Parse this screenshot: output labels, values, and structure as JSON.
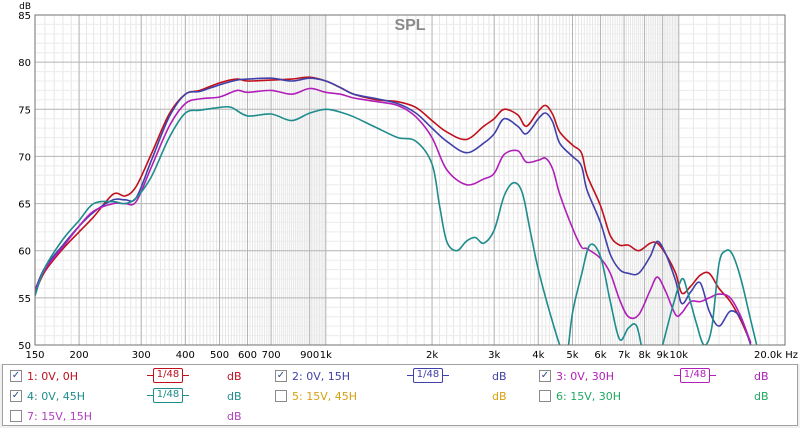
{
  "chart_data": {
    "type": "line",
    "title": "SPL",
    "ylabel": "dB",
    "xlabel": "Hz",
    "x_scale": "log",
    "xlim": [
      150,
      20000
    ],
    "ylim": [
      50,
      85
    ],
    "x_ticks": [
      {
        "value": 150,
        "label": "150"
      },
      {
        "value": 200,
        "label": "200"
      },
      {
        "value": 300,
        "label": "300"
      },
      {
        "value": 400,
        "label": "400"
      },
      {
        "value": 500,
        "label": "500"
      },
      {
        "value": 600,
        "label": "600"
      },
      {
        "value": 700,
        "label": "700"
      },
      {
        "value": 900,
        "label": "900"
      },
      {
        "value": 1000,
        "label": "1k"
      },
      {
        "value": 2000,
        "label": "2k"
      },
      {
        "value": 3000,
        "label": "3k"
      },
      {
        "value": 4000,
        "label": "4k"
      },
      {
        "value": 5000,
        "label": "5k"
      },
      {
        "value": 6000,
        "label": "6k"
      },
      {
        "value": 7000,
        "label": "7k"
      },
      {
        "value": 8000,
        "label": "8k"
      },
      {
        "value": 9000,
        "label": "9k"
      },
      {
        "value": 10000,
        "label": "10k"
      },
      {
        "value": 20000,
        "label": "20.0k Hz"
      }
    ],
    "y_ticks": [
      50,
      55,
      60,
      65,
      70,
      75,
      80,
      85
    ],
    "grid": true,
    "series": [
      {
        "name": "1: 0V, 0H",
        "color": "#c0101c",
        "points": [
          [
            150,
            55.5
          ],
          [
            160,
            57.8
          ],
          [
            180,
            60.2
          ],
          [
            200,
            62.0
          ],
          [
            220,
            63.6
          ],
          [
            250,
            66.0
          ],
          [
            270,
            65.8
          ],
          [
            290,
            66.8
          ],
          [
            320,
            70.2
          ],
          [
            360,
            74.5
          ],
          [
            400,
            76.6
          ],
          [
            440,
            77.0
          ],
          [
            500,
            77.8
          ],
          [
            560,
            78.2
          ],
          [
            600,
            78.0
          ],
          [
            700,
            78.1
          ],
          [
            800,
            78.2
          ],
          [
            900,
            78.4
          ],
          [
            1000,
            78.0
          ],
          [
            1100,
            77.3
          ],
          [
            1200,
            76.6
          ],
          [
            1400,
            76.0
          ],
          [
            1600,
            75.8
          ],
          [
            1800,
            75.2
          ],
          [
            2000,
            73.8
          ],
          [
            2200,
            72.6
          ],
          [
            2500,
            71.8
          ],
          [
            2800,
            73.2
          ],
          [
            3000,
            74.0
          ],
          [
            3200,
            75.0
          ],
          [
            3500,
            74.4
          ],
          [
            3700,
            73.2
          ],
          [
            4000,
            74.8
          ],
          [
            4200,
            75.4
          ],
          [
            4400,
            74.4
          ],
          [
            4600,
            72.6
          ],
          [
            5000,
            71.2
          ],
          [
            5300,
            70.4
          ],
          [
            5500,
            68.0
          ],
          [
            6000,
            64.8
          ],
          [
            6400,
            61.6
          ],
          [
            6800,
            60.6
          ],
          [
            7200,
            60.6
          ],
          [
            7700,
            60.0
          ],
          [
            8300,
            60.8
          ],
          [
            8700,
            60.8
          ],
          [
            9200,
            59.6
          ],
          [
            9800,
            57.6
          ],
          [
            10200,
            55.5
          ],
          [
            10800,
            56.2
          ],
          [
            11500,
            57.4
          ],
          [
            12200,
            57.6
          ],
          [
            13000,
            56.0
          ],
          [
            14000,
            54.6
          ],
          [
            15000,
            52.6
          ],
          [
            16000,
            50.2
          ]
        ]
      },
      {
        "name": "2: 0V, 15H",
        "color": "#4040a8",
        "points": [
          [
            150,
            55.8
          ],
          [
            160,
            58.2
          ],
          [
            180,
            60.6
          ],
          [
            200,
            62.6
          ],
          [
            220,
            64.1
          ],
          [
            250,
            65.4
          ],
          [
            270,
            65.4
          ],
          [
            290,
            65.6
          ],
          [
            320,
            69.5
          ],
          [
            360,
            74.2
          ],
          [
            400,
            76.6
          ],
          [
            440,
            76.9
          ],
          [
            500,
            77.6
          ],
          [
            560,
            78.1
          ],
          [
            600,
            78.2
          ],
          [
            700,
            78.3
          ],
          [
            800,
            78.0
          ],
          [
            900,
            78.3
          ],
          [
            1000,
            78.0
          ],
          [
            1100,
            77.3
          ],
          [
            1200,
            76.6
          ],
          [
            1400,
            76.1
          ],
          [
            1600,
            75.6
          ],
          [
            1800,
            74.6
          ],
          [
            2000,
            73.0
          ],
          [
            2200,
            71.6
          ],
          [
            2500,
            70.4
          ],
          [
            2800,
            71.4
          ],
          [
            3000,
            72.4
          ],
          [
            3200,
            74.0
          ],
          [
            3500,
            73.2
          ],
          [
            3700,
            72.4
          ],
          [
            4000,
            74.0
          ],
          [
            4200,
            74.6
          ],
          [
            4400,
            73.6
          ],
          [
            4600,
            71.4
          ],
          [
            5000,
            70.0
          ],
          [
            5300,
            69.0
          ],
          [
            5500,
            66.4
          ],
          [
            6000,
            63.0
          ],
          [
            6400,
            59.6
          ],
          [
            6800,
            58.0
          ],
          [
            7200,
            57.6
          ],
          [
            7700,
            57.6
          ],
          [
            8300,
            59.4
          ],
          [
            8700,
            61.0
          ],
          [
            9200,
            59.6
          ],
          [
            9800,
            56.8
          ],
          [
            10200,
            54.4
          ],
          [
            10800,
            55.6
          ],
          [
            11500,
            56.6
          ],
          [
            12200,
            53.6
          ],
          [
            13000,
            52.0
          ],
          [
            14000,
            53.6
          ],
          [
            15000,
            52.8
          ],
          [
            16000,
            50.0
          ]
        ]
      },
      {
        "name": "3: 0V, 30H",
        "color": "#b020b8",
        "points": [
          [
            150,
            55.6
          ],
          [
            160,
            58.0
          ],
          [
            180,
            60.4
          ],
          [
            200,
            62.6
          ],
          [
            220,
            64.2
          ],
          [
            250,
            65.0
          ],
          [
            270,
            65.0
          ],
          [
            290,
            65.2
          ],
          [
            320,
            68.8
          ],
          [
            360,
            73.2
          ],
          [
            400,
            75.6
          ],
          [
            440,
            76.1
          ],
          [
            500,
            76.3
          ],
          [
            560,
            77.0
          ],
          [
            600,
            76.8
          ],
          [
            700,
            77.0
          ],
          [
            800,
            76.6
          ],
          [
            900,
            77.2
          ],
          [
            1000,
            76.8
          ],
          [
            1100,
            76.6
          ],
          [
            1200,
            76.2
          ],
          [
            1400,
            75.8
          ],
          [
            1600,
            75.4
          ],
          [
            1800,
            74.2
          ],
          [
            2000,
            72.0
          ],
          [
            2200,
            68.6
          ],
          [
            2500,
            67.0
          ],
          [
            2800,
            67.6
          ],
          [
            3000,
            68.2
          ],
          [
            3200,
            70.2
          ],
          [
            3500,
            70.6
          ],
          [
            3700,
            69.4
          ],
          [
            4000,
            69.6
          ],
          [
            4200,
            69.8
          ],
          [
            4400,
            68.6
          ],
          [
            4600,
            66.0
          ],
          [
            5000,
            62.4
          ],
          [
            5300,
            60.4
          ],
          [
            5500,
            60.2
          ],
          [
            6000,
            59.2
          ],
          [
            6400,
            57.6
          ],
          [
            6800,
            54.8
          ],
          [
            7200,
            53.0
          ],
          [
            7700,
            53.2
          ],
          [
            8300,
            55.8
          ],
          [
            8700,
            57.2
          ],
          [
            9200,
            55.6
          ],
          [
            9800,
            53.2
          ],
          [
            10200,
            53.4
          ],
          [
            10800,
            54.6
          ],
          [
            11500,
            54.6
          ],
          [
            12200,
            55.0
          ],
          [
            13000,
            55.4
          ],
          [
            14000,
            55.0
          ],
          [
            15000,
            53.0
          ],
          [
            16000,
            50.2
          ]
        ]
      },
      {
        "name": "4: 0V, 45H",
        "color": "#1e8c8c",
        "points": [
          [
            150,
            55.2
          ],
          [
            160,
            58.2
          ],
          [
            180,
            61.2
          ],
          [
            200,
            63.2
          ],
          [
            220,
            65.0
          ],
          [
            250,
            65.2
          ],
          [
            270,
            65.0
          ],
          [
            290,
            65.6
          ],
          [
            320,
            67.8
          ],
          [
            360,
            72.0
          ],
          [
            400,
            74.6
          ],
          [
            440,
            74.9
          ],
          [
            500,
            75.2
          ],
          [
            540,
            75.2
          ],
          [
            600,
            74.3
          ],
          [
            700,
            74.5
          ],
          [
            800,
            73.8
          ],
          [
            900,
            74.6
          ],
          [
            1000,
            75.0
          ],
          [
            1100,
            74.7
          ],
          [
            1200,
            74.2
          ],
          [
            1400,
            73.0
          ],
          [
            1600,
            72.0
          ],
          [
            1800,
            71.6
          ],
          [
            2000,
            69.2
          ],
          [
            2100,
            64.8
          ],
          [
            2200,
            61.0
          ],
          [
            2350,
            60.0
          ],
          [
            2500,
            61.0
          ],
          [
            2650,
            61.4
          ],
          [
            2800,
            60.8
          ],
          [
            3000,
            62.2
          ],
          [
            3200,
            65.8
          ],
          [
            3400,
            67.2
          ],
          [
            3600,
            66.2
          ],
          [
            3800,
            62.0
          ],
          [
            4000,
            58.0
          ],
          [
            4300,
            53.6
          ],
          [
            4600,
            50.0
          ],
          [
            4800,
            48.5
          ],
          [
            5000,
            53.4
          ],
          [
            5300,
            57.4
          ],
          [
            5600,
            60.6
          ],
          [
            6000,
            59.4
          ],
          [
            6400,
            54.6
          ],
          [
            6800,
            50.6
          ],
          [
            7200,
            51.8
          ],
          [
            7600,
            52.0
          ],
          [
            8000,
            48.5
          ],
          [
            8500,
            47.0
          ],
          [
            9000,
            50.0
          ],
          [
            9600,
            54.0
          ],
          [
            10200,
            57.0
          ],
          [
            10600,
            55.6
          ],
          [
            11200,
            52.4
          ],
          [
            11800,
            50.0
          ],
          [
            12400,
            51.8
          ],
          [
            13000,
            58.6
          ],
          [
            13600,
            60.0
          ],
          [
            14200,
            59.6
          ],
          [
            15000,
            57.0
          ],
          [
            16000,
            52.6
          ],
          [
            17000,
            48.5
          ]
        ]
      }
    ],
    "legend": [
      {
        "label": "1: 0V, 0H",
        "checked": true,
        "smoothing": "1/48",
        "color": "#c0101c",
        "unit": "dB"
      },
      {
        "label": "2: 0V, 15H",
        "checked": true,
        "smoothing": "1/48",
        "color": "#4040a8",
        "unit": "dB"
      },
      {
        "label": "3: 0V, 30H",
        "checked": true,
        "smoothing": "1/48",
        "color": "#b020b8",
        "unit": "dB"
      },
      {
        "label": "4: 0V, 45H",
        "checked": true,
        "smoothing": "1/48",
        "color": "#1e8c8c",
        "unit": "dB"
      },
      {
        "label": "5: 15V, 45H",
        "checked": false,
        "smoothing": "",
        "color": "#d8a010",
        "unit": "dB"
      },
      {
        "label": "6: 15V, 30H",
        "checked": false,
        "smoothing": "",
        "color": "#20a860",
        "unit": "dB"
      },
      {
        "label": "7: 15V, 15H",
        "checked": false,
        "smoothing": "",
        "color": "#b040c0",
        "unit": "dB"
      }
    ]
  }
}
